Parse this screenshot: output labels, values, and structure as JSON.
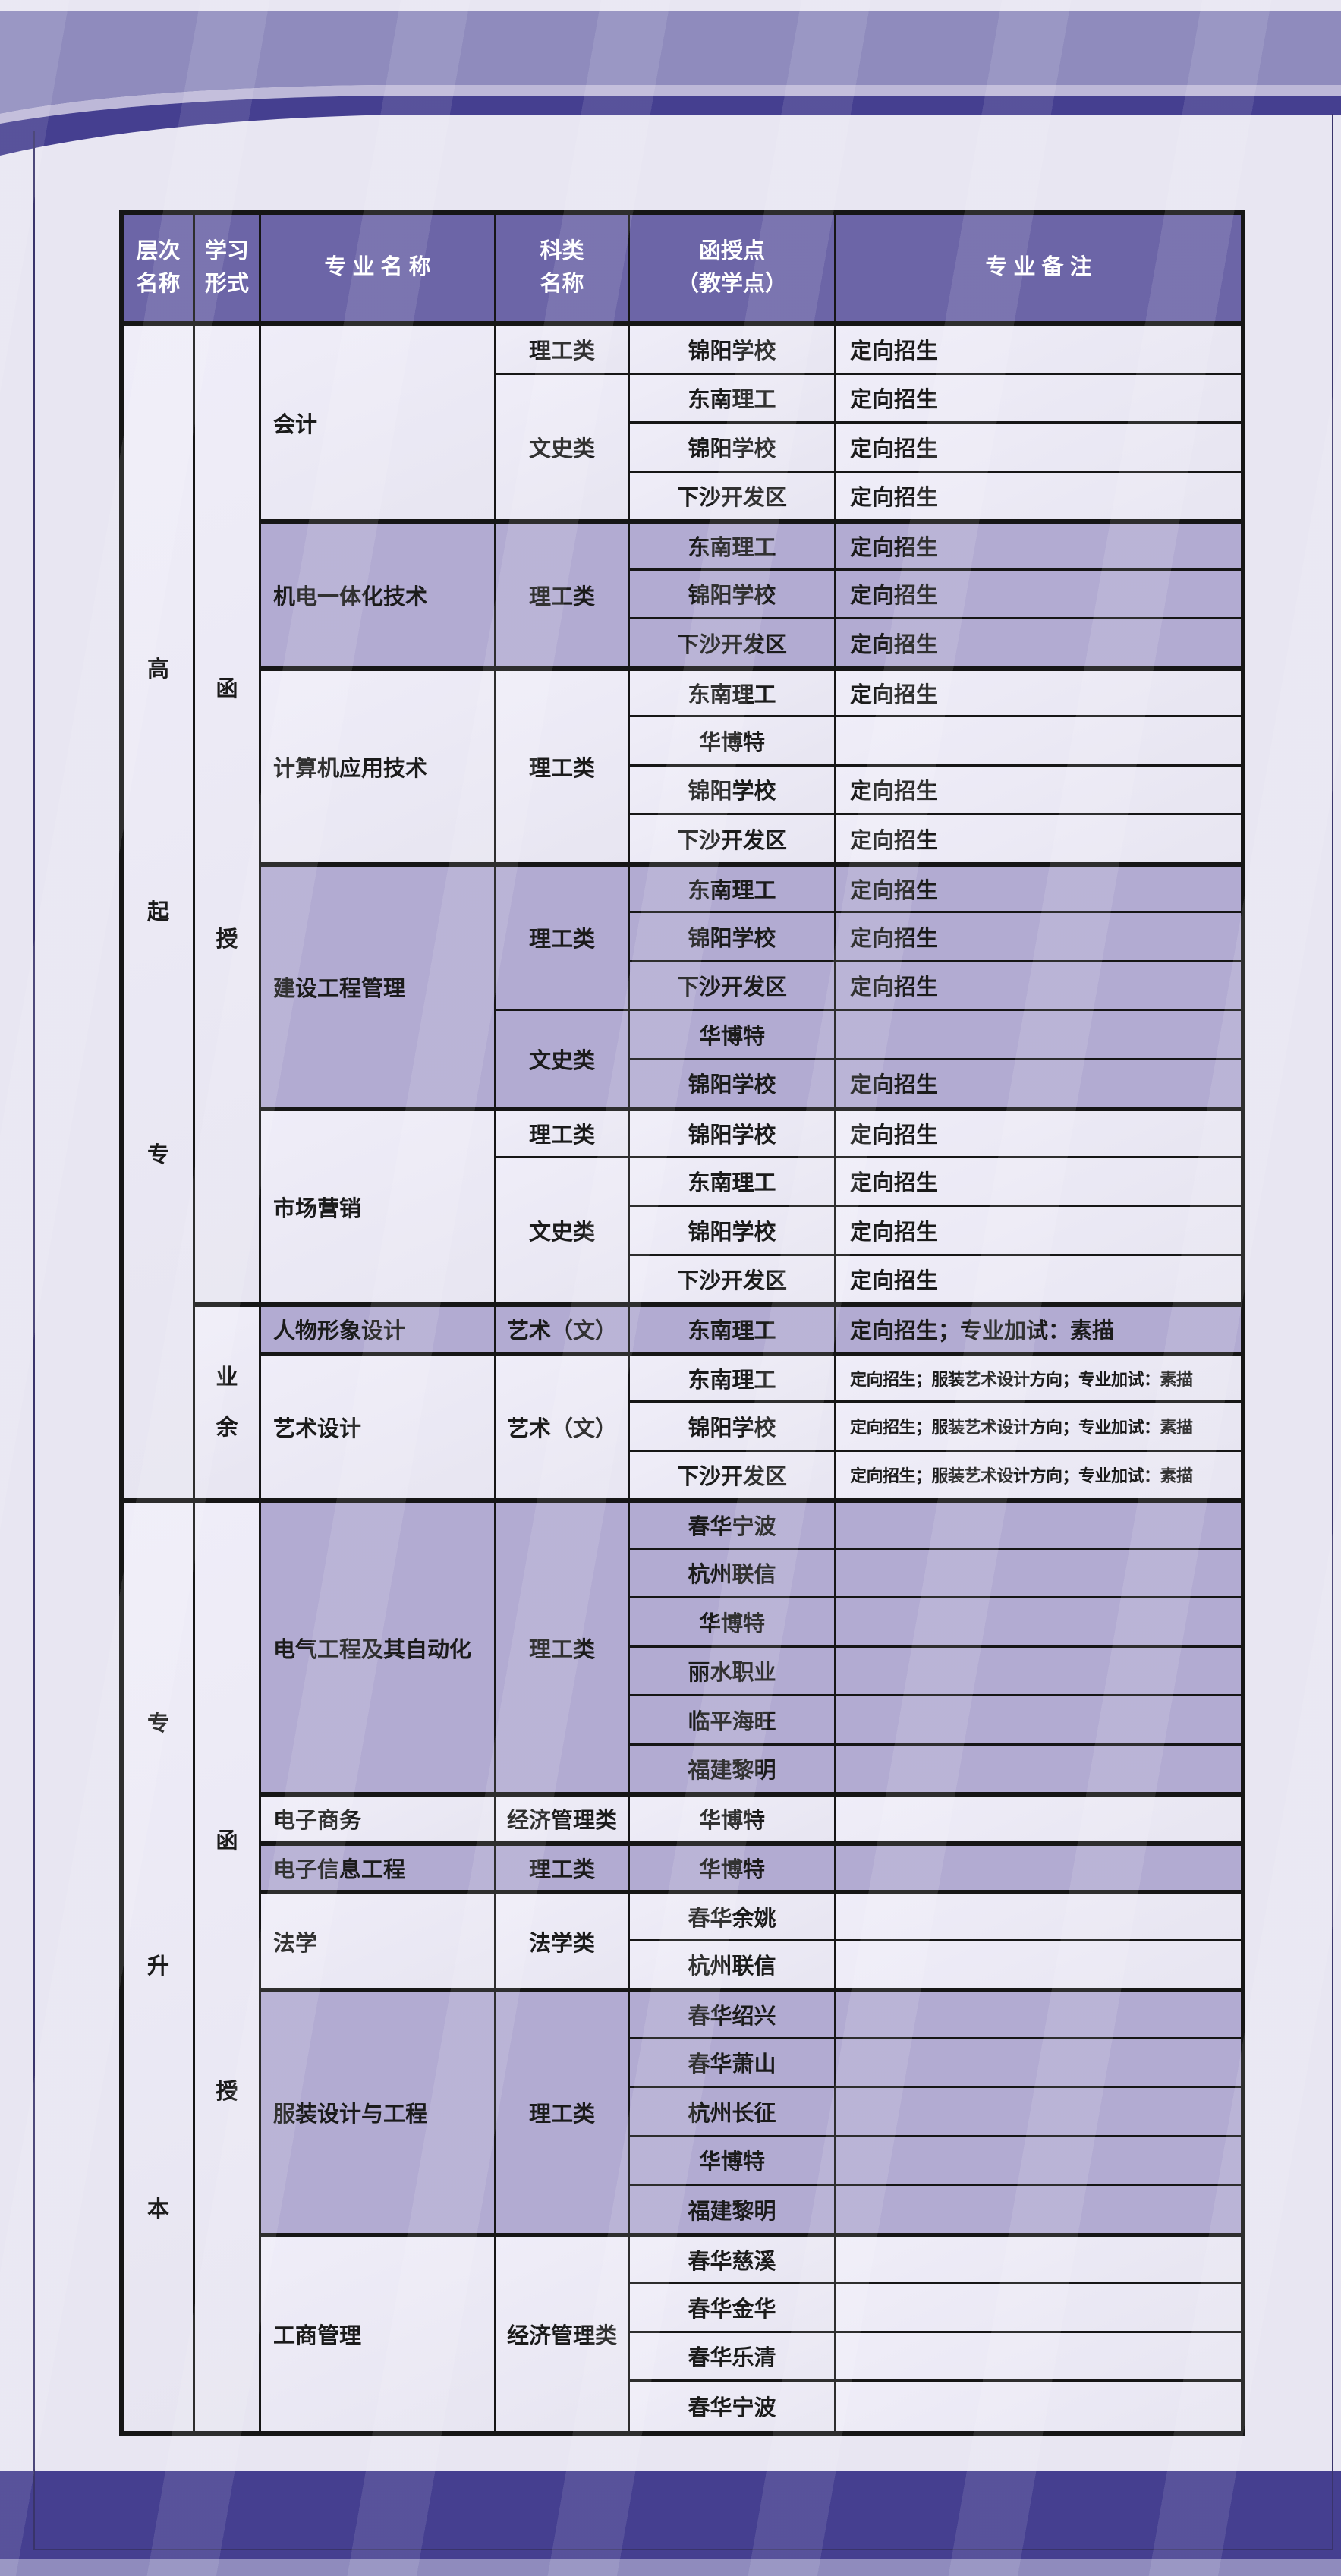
{
  "page": {
    "background": "#e8e6f2",
    "accent_dark_indigo": "#453f90",
    "accent_mid_purple": "#8f8bbd",
    "accent_light_stripe": "#bdb8d8",
    "header_purple": "#6c65a7",
    "row_dark": "#b2abd2",
    "row_light": "#eae8f4",
    "border_black": "#161616"
  },
  "table": {
    "headers": [
      {
        "label": "层次\n名称"
      },
      {
        "label": "学习\n形式"
      },
      {
        "label": "专 业 名 称"
      },
      {
        "label": "科类\n名称"
      },
      {
        "label": "函授点\n（教学点）"
      },
      {
        "label": "专 业 备 注"
      }
    ],
    "level_cells": [
      {
        "text": "高\n起\n专",
        "rows": 24,
        "gap": "gap-lg"
      },
      {
        "text": "专\n升\n本",
        "rows": 19,
        "gap": "gap-lg"
      }
    ],
    "form_cells": [
      {
        "text": "函\n授",
        "rows": 20,
        "gap": "gap-md"
      },
      {
        "text": "业\n余",
        "rows": 4,
        "gap": "gap-sm"
      },
      {
        "text": "函\n授",
        "rows": 19,
        "gap": "gap-md"
      }
    ],
    "major_groups": [
      {
        "major": "会计",
        "shade": "lt",
        "cats": [
          {
            "name": "理工类",
            "sites": [
              {
                "site": "锦阳学校",
                "remark": "定向招生"
              }
            ]
          },
          {
            "name": "文史类",
            "sites": [
              {
                "site": "东南理工",
                "remark": "定向招生"
              },
              {
                "site": "锦阳学校",
                "remark": "定向招生"
              },
              {
                "site": "下沙开发区",
                "remark": "定向招生"
              }
            ]
          }
        ]
      },
      {
        "major": "机电一体化技术",
        "shade": "dk",
        "cats": [
          {
            "name": "理工类",
            "sites": [
              {
                "site": "东南理工",
                "remark": "定向招生"
              },
              {
                "site": "锦阳学校",
                "remark": "定向招生"
              },
              {
                "site": "下沙开发区",
                "remark": "定向招生"
              }
            ]
          }
        ]
      },
      {
        "major": "计算机应用技术",
        "shade": "lt",
        "cats": [
          {
            "name": "理工类",
            "sites": [
              {
                "site": "东南理工",
                "remark": "定向招生"
              },
              {
                "site": "华博特",
                "remark": ""
              },
              {
                "site": "锦阳学校",
                "remark": "定向招生"
              },
              {
                "site": "下沙开发区",
                "remark": "定向招生"
              }
            ]
          }
        ]
      },
      {
        "major": "建设工程管理",
        "shade": "dk",
        "cats": [
          {
            "name": "理工类",
            "sites": [
              {
                "site": "东南理工",
                "remark": "定向招生"
              },
              {
                "site": "锦阳学校",
                "remark": "定向招生"
              },
              {
                "site": "下沙开发区",
                "remark": "定向招生"
              }
            ]
          },
          {
            "name": "文史类",
            "sites": [
              {
                "site": "华博特",
                "remark": ""
              },
              {
                "site": "锦阳学校",
                "remark": "定向招生"
              }
            ]
          }
        ]
      },
      {
        "major": "市场营销",
        "shade": "lt",
        "cats": [
          {
            "name": "理工类",
            "sites": [
              {
                "site": "锦阳学校",
                "remark": "定向招生"
              }
            ]
          },
          {
            "name": "文史类",
            "sites": [
              {
                "site": "东南理工",
                "remark": "定向招生"
              },
              {
                "site": "锦阳学校",
                "remark": "定向招生"
              },
              {
                "site": "下沙开发区",
                "remark": "定向招生"
              }
            ]
          }
        ]
      },
      {
        "major": "人物形象设计",
        "shade": "dk",
        "cats": [
          {
            "name": "艺术（文）",
            "sites": [
              {
                "site": "东南理工",
                "remark": "定向招生；专业加试：素描"
              }
            ]
          }
        ]
      },
      {
        "major": "艺术设计",
        "shade": "lt",
        "cats": [
          {
            "name": "艺术（文）",
            "sites": [
              {
                "site": "东南理工",
                "remark": "定向招生；服装艺术设计方向；专业加试：素描"
              },
              {
                "site": "锦阳学校",
                "remark": "定向招生；服装艺术设计方向；专业加试：素描"
              },
              {
                "site": "下沙开发区",
                "remark": "定向招生；服装艺术设计方向；专业加试：素描"
              }
            ]
          }
        ]
      },
      {
        "major": "电气工程及其自动化",
        "shade": "dk",
        "cats": [
          {
            "name": "理工类",
            "sites": [
              {
                "site": "春华宁波",
                "remark": ""
              },
              {
                "site": "杭州联信",
                "remark": ""
              },
              {
                "site": "华博特",
                "remark": ""
              },
              {
                "site": "丽水职业",
                "remark": ""
              },
              {
                "site": "临平海旺",
                "remark": ""
              },
              {
                "site": "福建黎明",
                "remark": ""
              }
            ]
          }
        ]
      },
      {
        "major": "电子商务",
        "shade": "lt",
        "cats": [
          {
            "name": "经济管理类",
            "sites": [
              {
                "site": "华博特",
                "remark": ""
              }
            ]
          }
        ]
      },
      {
        "major": "电子信息工程",
        "shade": "dk",
        "cats": [
          {
            "name": "理工类",
            "sites": [
              {
                "site": "华博特",
                "remark": ""
              }
            ]
          }
        ]
      },
      {
        "major": "法学",
        "shade": "lt",
        "cats": [
          {
            "name": "法学类",
            "sites": [
              {
                "site": "春华余姚",
                "remark": ""
              },
              {
                "site": "杭州联信",
                "remark": ""
              }
            ]
          }
        ]
      },
      {
        "major": "服装设计与工程",
        "shade": "dk",
        "cats": [
          {
            "name": "理工类",
            "sites": [
              {
                "site": "春华绍兴",
                "remark": ""
              },
              {
                "site": "春华萧山",
                "remark": ""
              },
              {
                "site": "杭州长征",
                "remark": ""
              },
              {
                "site": "华博特",
                "remark": ""
              },
              {
                "site": "福建黎明",
                "remark": ""
              }
            ]
          }
        ]
      },
      {
        "major": "工商管理",
        "shade": "lt",
        "cats": [
          {
            "name": "经济管理类",
            "sites": [
              {
                "site": "春华慈溪",
                "remark": ""
              },
              {
                "site": "春华金华",
                "remark": ""
              },
              {
                "site": "春华乐清",
                "remark": ""
              },
              {
                "site": "春华宁波",
                "remark": ""
              }
            ]
          }
        ]
      }
    ]
  }
}
